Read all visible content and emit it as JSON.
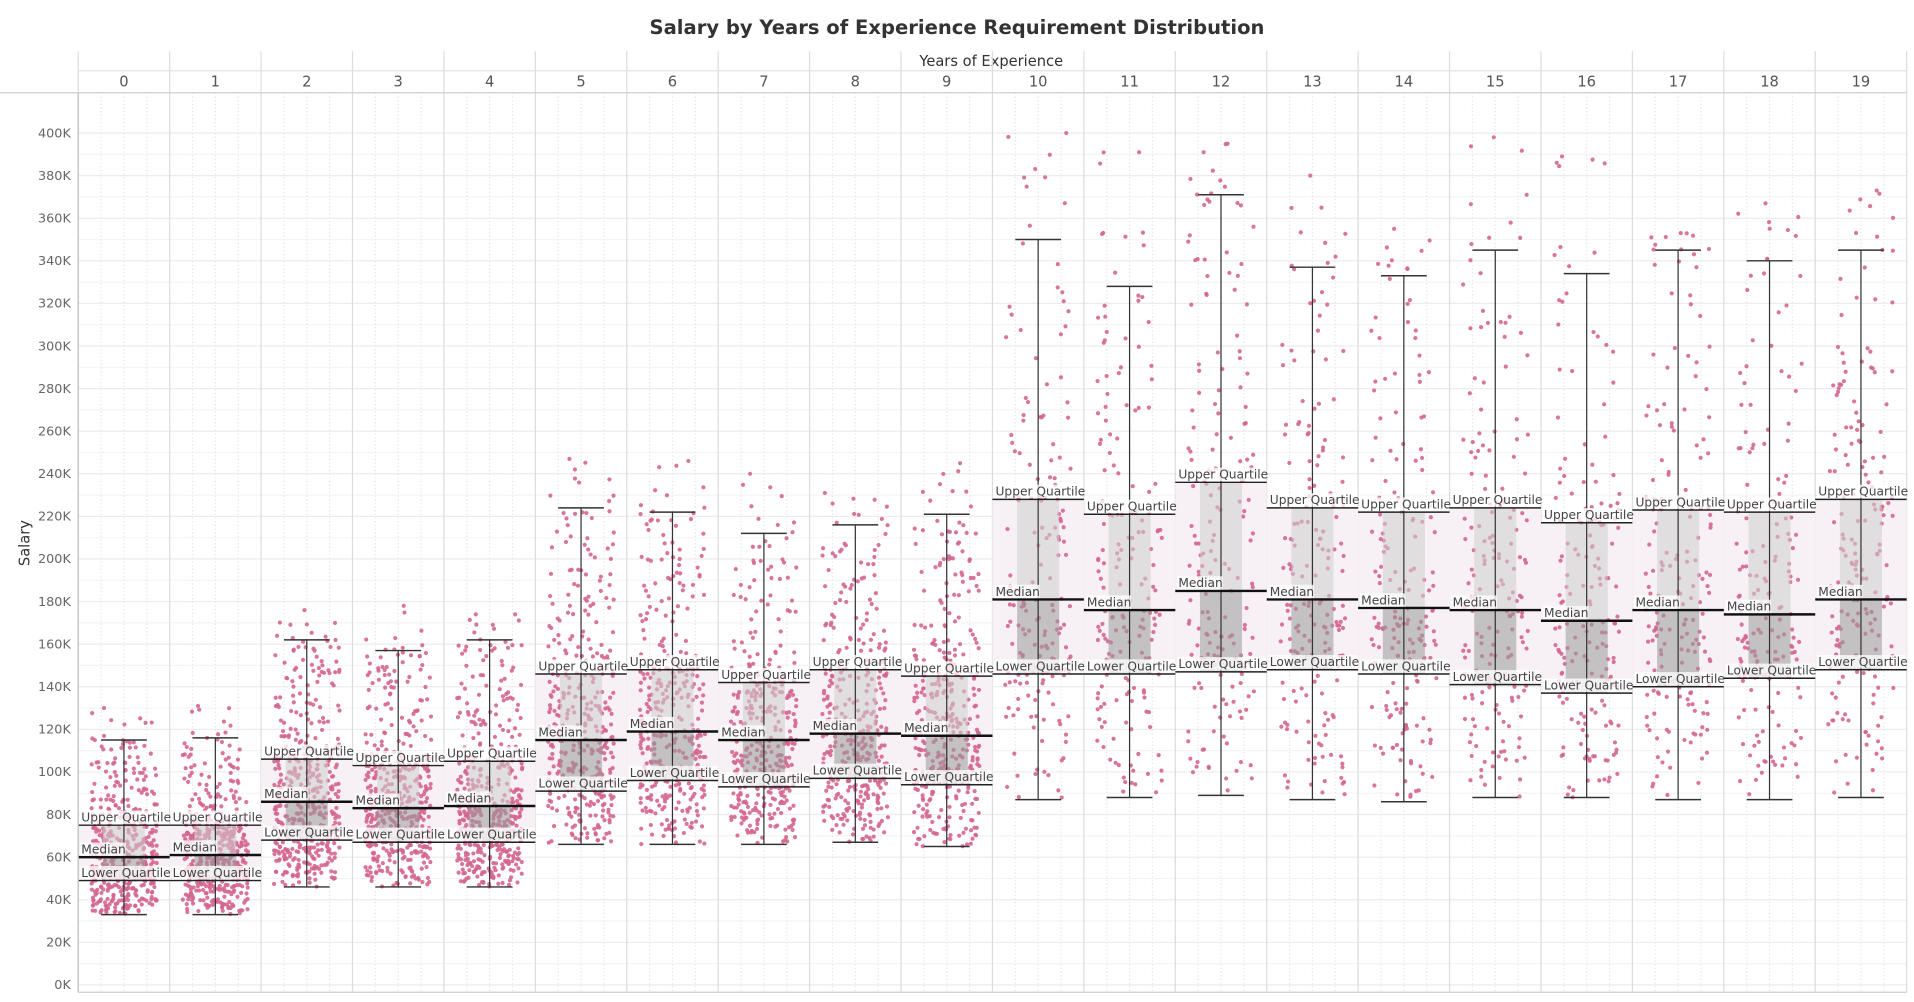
{
  "chart_data": {
    "type": "scatter",
    "title": "Salary by Years of Experience Requirement Distribution",
    "xlabel": "Years of Experience",
    "ylabel": "Salary",
    "ylim": [
      0,
      400000
    ],
    "y_ticks": [
      "0K",
      "20K",
      "40K",
      "60K",
      "80K",
      "100K",
      "120K",
      "140K",
      "160K",
      "180K",
      "200K",
      "220K",
      "240K",
      "260K",
      "280K",
      "300K",
      "320K",
      "340K",
      "360K",
      "380K",
      "400K"
    ],
    "reference_labels": {
      "upper": "Upper Quartile",
      "median": "Median",
      "lower": "Lower Quartile"
    },
    "point_color": "#d4668f",
    "grid": true,
    "legend": "none",
    "columns": [
      {
        "label": "0",
        "whisker_low": 33000,
        "lower_quartile": 49000,
        "median": 60000,
        "upper_quartile": 75000,
        "whisker_high": 115000,
        "max": 130000
      },
      {
        "label": "1",
        "whisker_low": 33000,
        "lower_quartile": 49000,
        "median": 61000,
        "upper_quartile": 75000,
        "whisker_high": 116000,
        "max": 131000
      },
      {
        "label": "2",
        "whisker_low": 46000,
        "lower_quartile": 68000,
        "median": 86000,
        "upper_quartile": 106000,
        "whisker_high": 162000,
        "max": 176000
      },
      {
        "label": "3",
        "whisker_low": 46000,
        "lower_quartile": 67000,
        "median": 83000,
        "upper_quartile": 103000,
        "whisker_high": 157000,
        "max": 178000
      },
      {
        "label": "4",
        "whisker_low": 46000,
        "lower_quartile": 67000,
        "median": 84000,
        "upper_quartile": 105000,
        "whisker_high": 162000,
        "max": 174000
      },
      {
        "label": "5",
        "whisker_low": 66000,
        "lower_quartile": 91000,
        "median": 115000,
        "upper_quartile": 146000,
        "whisker_high": 224000,
        "max": 247000
      },
      {
        "label": "6",
        "whisker_low": 66000,
        "lower_quartile": 96000,
        "median": 119000,
        "upper_quartile": 148000,
        "whisker_high": 222000,
        "max": 246000
      },
      {
        "label": "7",
        "whisker_low": 66000,
        "lower_quartile": 93000,
        "median": 115000,
        "upper_quartile": 142000,
        "whisker_high": 212000,
        "max": 240000
      },
      {
        "label": "8",
        "whisker_low": 67000,
        "lower_quartile": 97000,
        "median": 118000,
        "upper_quartile": 148000,
        "whisker_high": 216000,
        "max": 231000
      },
      {
        "label": "9",
        "whisker_low": 65000,
        "lower_quartile": 94000,
        "median": 117000,
        "upper_quartile": 145000,
        "whisker_high": 221000,
        "max": 245000
      },
      {
        "label": "10",
        "whisker_low": 87000,
        "lower_quartile": 146000,
        "median": 181000,
        "upper_quartile": 228000,
        "whisker_high": 350000,
        "max": 400000
      },
      {
        "label": "11",
        "whisker_low": 88000,
        "lower_quartile": 146000,
        "median": 176000,
        "upper_quartile": 221000,
        "whisker_high": 328000,
        "max": 391000
      },
      {
        "label": "12",
        "whisker_low": 89000,
        "lower_quartile": 147000,
        "median": 185000,
        "upper_quartile": 236000,
        "whisker_high": 371000,
        "max": 395000
      },
      {
        "label": "13",
        "whisker_low": 87000,
        "lower_quartile": 148000,
        "median": 181000,
        "upper_quartile": 224000,
        "whisker_high": 337000,
        "max": 380000
      },
      {
        "label": "14",
        "whisker_low": 86000,
        "lower_quartile": 146000,
        "median": 177000,
        "upper_quartile": 222000,
        "whisker_high": 333000,
        "max": 355000
      },
      {
        "label": "15",
        "whisker_low": 88000,
        "lower_quartile": 141000,
        "median": 176000,
        "upper_quartile": 224000,
        "whisker_high": 345000,
        "max": 398000
      },
      {
        "label": "16",
        "whisker_low": 88000,
        "lower_quartile": 137000,
        "median": 171000,
        "upper_quartile": 217000,
        "whisker_high": 334000,
        "max": 389000
      },
      {
        "label": "17",
        "whisker_low": 87000,
        "lower_quartile": 140000,
        "median": 176000,
        "upper_quartile": 223000,
        "whisker_high": 345000,
        "max": 353000
      },
      {
        "label": "18",
        "whisker_low": 87000,
        "lower_quartile": 144000,
        "median": 174000,
        "upper_quartile": 222000,
        "whisker_high": 340000,
        "max": 367000
      },
      {
        "label": "19",
        "whisker_low": 88000,
        "lower_quartile": 148000,
        "median": 181000,
        "upper_quartile": 228000,
        "whisker_high": 345000,
        "max": 373000
      }
    ]
  }
}
